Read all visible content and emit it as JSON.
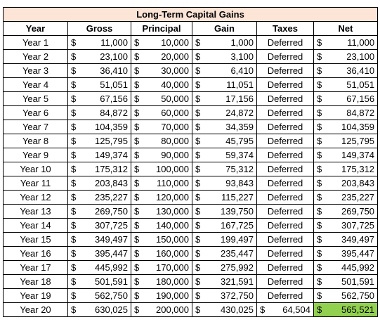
{
  "table": {
    "title": "Long-Term Capital Gains",
    "columns": [
      "Year",
      "Gross",
      "Principal",
      "Gain",
      "Taxes",
      "Net"
    ],
    "rows": [
      [
        "Year 1",
        [
          "$",
          "11,000"
        ],
        [
          "$",
          "10,000"
        ],
        [
          "$",
          "1,000"
        ],
        "Deferred",
        [
          "$",
          "11,000"
        ]
      ],
      [
        "Year 2",
        [
          "$",
          "23,100"
        ],
        [
          "$",
          "20,000"
        ],
        [
          "$",
          "3,100"
        ],
        "Deferred",
        [
          "$",
          "23,100"
        ]
      ],
      [
        "Year 3",
        [
          "$",
          "36,410"
        ],
        [
          "$",
          "30,000"
        ],
        [
          "$",
          "6,410"
        ],
        "Deferred",
        [
          "$",
          "36,410"
        ]
      ],
      [
        "Year 4",
        [
          "$",
          "51,051"
        ],
        [
          "$",
          "40,000"
        ],
        [
          "$",
          "11,051"
        ],
        "Deferred",
        [
          "$",
          "51,051"
        ]
      ],
      [
        "Year 5",
        [
          "$",
          "67,156"
        ],
        [
          "$",
          "50,000"
        ],
        [
          "$",
          "17,156"
        ],
        "Deferred",
        [
          "$",
          "67,156"
        ]
      ],
      [
        "Year 6",
        [
          "$",
          "84,872"
        ],
        [
          "$",
          "60,000"
        ],
        [
          "$",
          "24,872"
        ],
        "Deferred",
        [
          "$",
          "84,872"
        ]
      ],
      [
        "Year 7",
        [
          "$",
          "104,359"
        ],
        [
          "$",
          "70,000"
        ],
        [
          "$",
          "34,359"
        ],
        "Deferred",
        [
          "$",
          "104,359"
        ]
      ],
      [
        "Year 8",
        [
          "$",
          "125,795"
        ],
        [
          "$",
          "80,000"
        ],
        [
          "$",
          "45,795"
        ],
        "Deferred",
        [
          "$",
          "125,795"
        ]
      ],
      [
        "Year 9",
        [
          "$",
          "149,374"
        ],
        [
          "$",
          "90,000"
        ],
        [
          "$",
          "59,374"
        ],
        "Deferred",
        [
          "$",
          "149,374"
        ]
      ],
      [
        "Year 10",
        [
          "$",
          "175,312"
        ],
        [
          "$",
          "100,000"
        ],
        [
          "$",
          "75,312"
        ],
        "Deferred",
        [
          "$",
          "175,312"
        ]
      ],
      [
        "Year 11",
        [
          "$",
          "203,843"
        ],
        [
          "$",
          "110,000"
        ],
        [
          "$",
          "93,843"
        ],
        "Deferred",
        [
          "$",
          "203,843"
        ]
      ],
      [
        "Year 12",
        [
          "$",
          "235,227"
        ],
        [
          "$",
          "120,000"
        ],
        [
          "$",
          "115,227"
        ],
        "Deferred",
        [
          "$",
          "235,227"
        ]
      ],
      [
        "Year 13",
        [
          "$",
          "269,750"
        ],
        [
          "$",
          "130,000"
        ],
        [
          "$",
          "139,750"
        ],
        "Deferred",
        [
          "$",
          "269,750"
        ]
      ],
      [
        "Year 14",
        [
          "$",
          "307,725"
        ],
        [
          "$",
          "140,000"
        ],
        [
          "$",
          "167,725"
        ],
        "Deferred",
        [
          "$",
          "307,725"
        ]
      ],
      [
        "Year 15",
        [
          "$",
          "349,497"
        ],
        [
          "$",
          "150,000"
        ],
        [
          "$",
          "199,497"
        ],
        "Deferred",
        [
          "$",
          "349,497"
        ]
      ],
      [
        "Year 16",
        [
          "$",
          "395,447"
        ],
        [
          "$",
          "160,000"
        ],
        [
          "$",
          "235,447"
        ],
        "Deferred",
        [
          "$",
          "395,447"
        ]
      ],
      [
        "Year 17",
        [
          "$",
          "445,992"
        ],
        [
          "$",
          "170,000"
        ],
        [
          "$",
          "275,992"
        ],
        "Deferred",
        [
          "$",
          "445,992"
        ]
      ],
      [
        "Year 18",
        [
          "$",
          "501,591"
        ],
        [
          "$",
          "180,000"
        ],
        [
          "$",
          "321,591"
        ],
        "Deferred",
        [
          "$",
          "501,591"
        ]
      ],
      [
        "Year 19",
        [
          "$",
          "562,750"
        ],
        [
          "$",
          "190,000"
        ],
        [
          "$",
          "372,750"
        ],
        "Deferred",
        [
          "$",
          "562,750"
        ]
      ],
      [
        "Year 20",
        [
          "$",
          "630,025"
        ],
        [
          "$",
          "200,000"
        ],
        [
          "$",
          "430,025"
        ],
        [
          "$",
          "64,504"
        ],
        [
          "$",
          "565,521"
        ]
      ]
    ]
  }
}
